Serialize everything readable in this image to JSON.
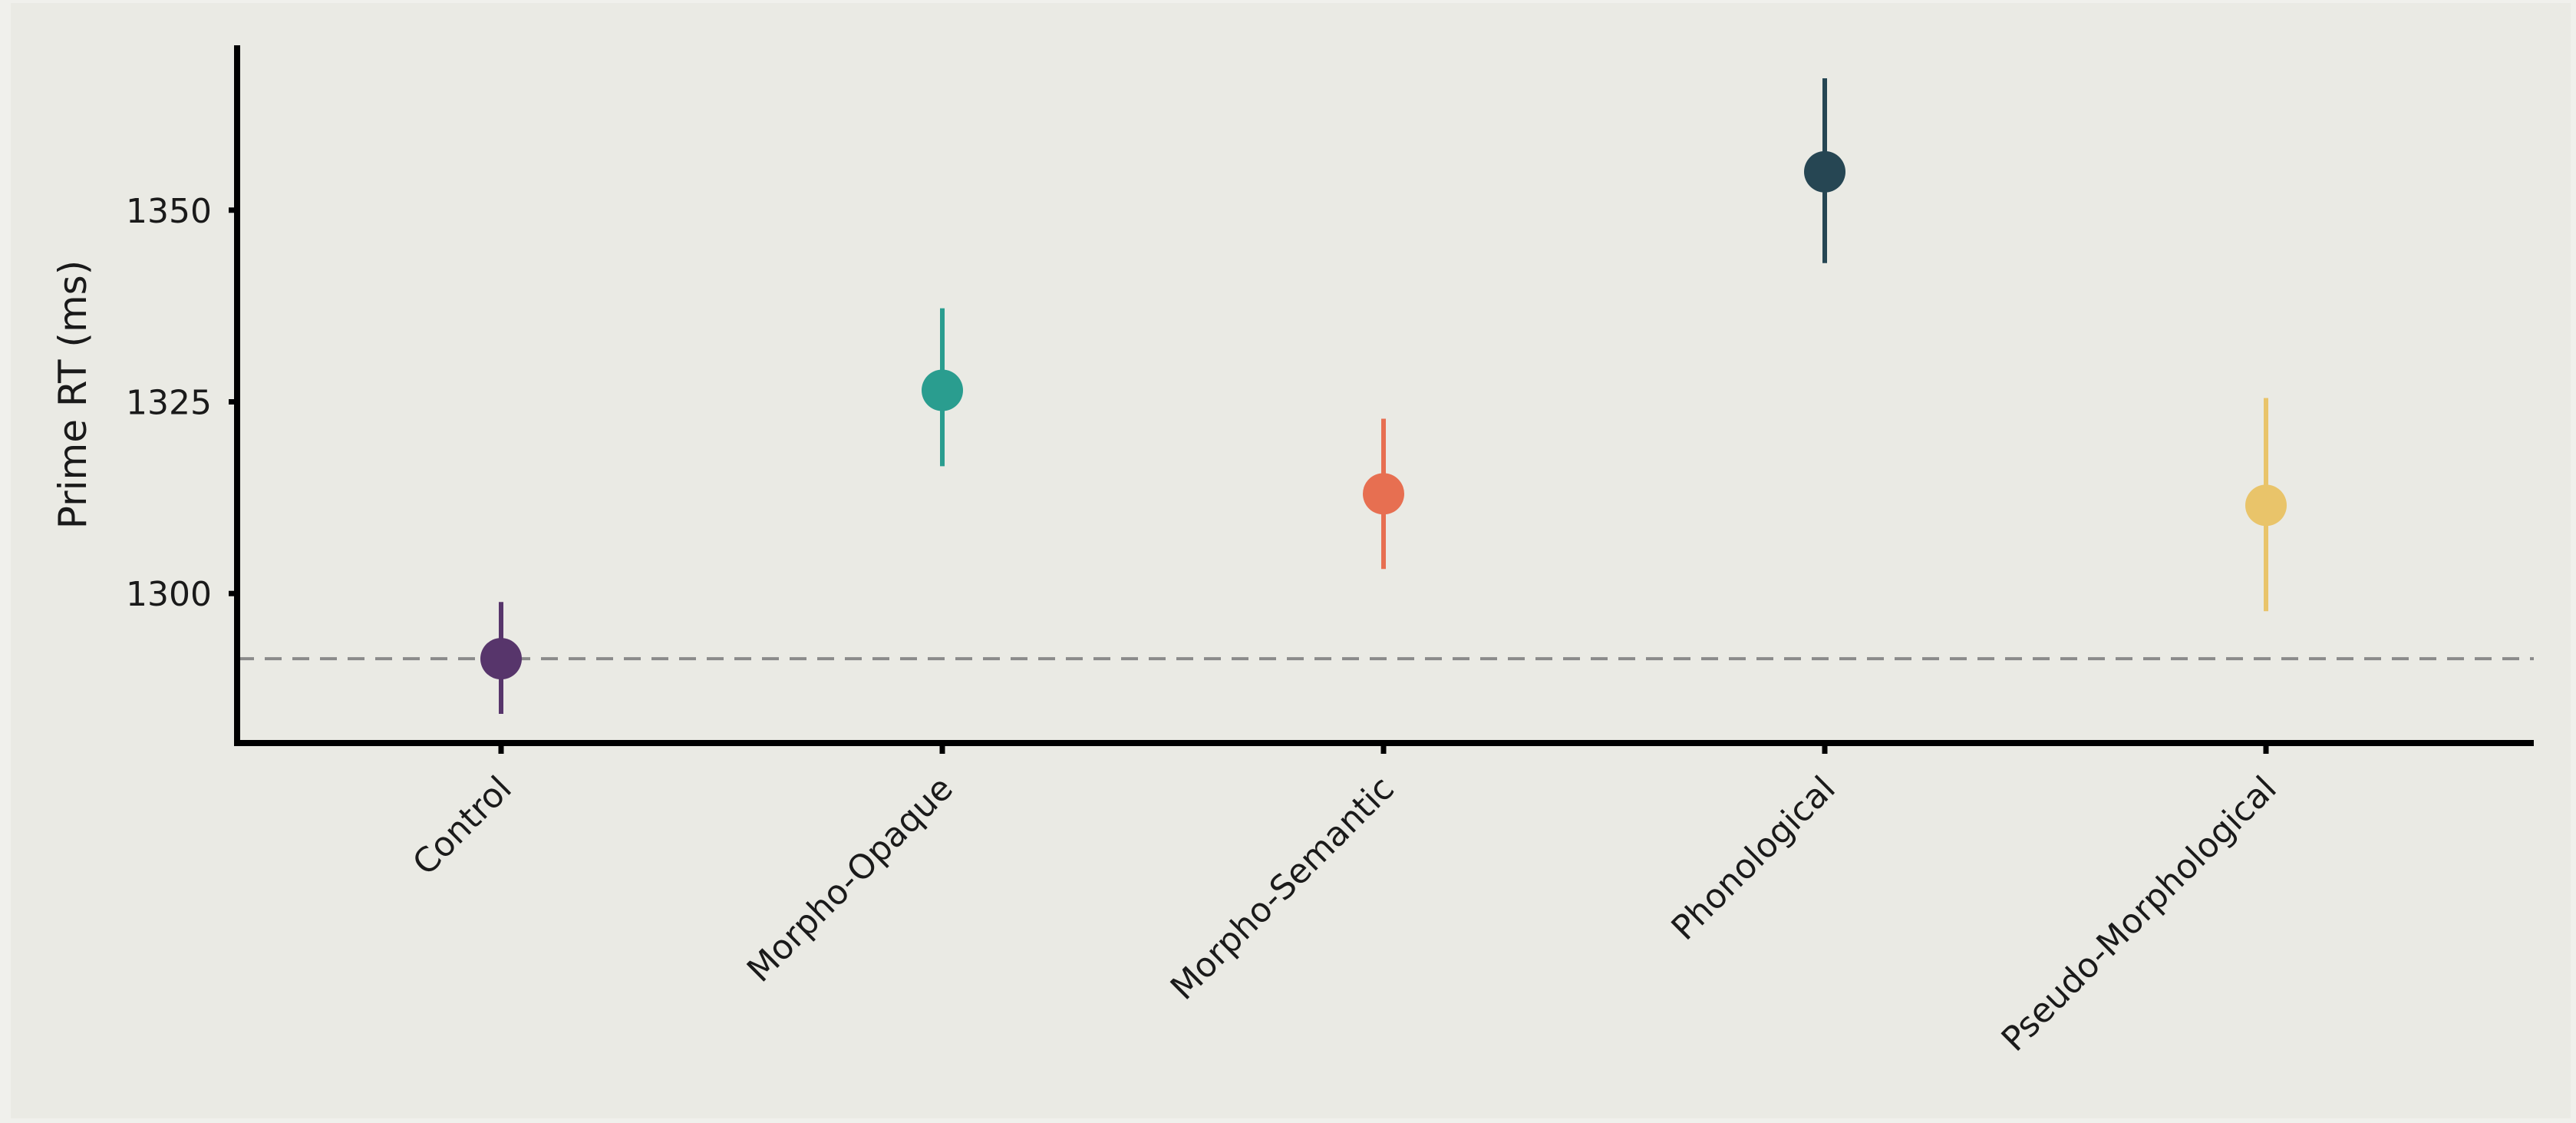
{
  "chart_data": {
    "type": "scatter",
    "title": "",
    "xlabel": "",
    "ylabel": "Prime RT (ms)",
    "ylim": [
      1280.5,
      1371.5
    ],
    "yticks": [
      1300,
      1325,
      1350
    ],
    "grid": false,
    "legend": "none",
    "reference_line": {
      "y": 1291.5,
      "style": "dashed",
      "color": "#8a8a8a"
    },
    "categories": [
      "Control",
      "Morpho-Opaque",
      "Morpho-Semantic",
      "Phonological",
      "Pseudo-Morphological"
    ],
    "points": [
      {
        "category": "Control",
        "mean": 1291.5,
        "low": 1284.3,
        "high": 1298.9,
        "color": "#57356b"
      },
      {
        "category": "Morpho-Opaque",
        "mean": 1326.5,
        "low": 1316.6,
        "high": 1337.2,
        "color": "#2a9d8f"
      },
      {
        "category": "Morpho-Semantic",
        "mean": 1313.0,
        "low": 1303.2,
        "high": 1322.8,
        "color": "#e76f51"
      },
      {
        "category": "Phonological",
        "mean": 1355.0,
        "low": 1343.1,
        "high": 1367.2,
        "color": "#264653"
      },
      {
        "category": "Pseudo-Morphological",
        "mean": 1311.5,
        "low": 1297.7,
        "high": 1325.5,
        "color": "#e9c46a"
      }
    ]
  }
}
